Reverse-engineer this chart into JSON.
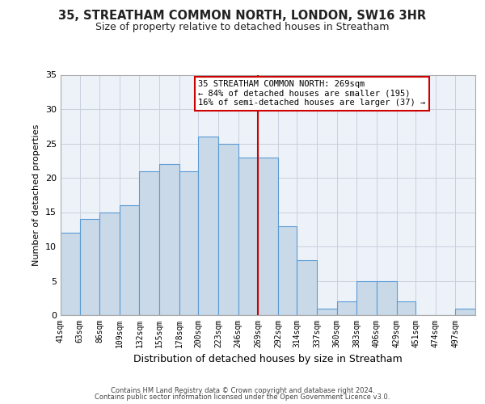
{
  "title": "35, STREATHAM COMMON NORTH, LONDON, SW16 3HR",
  "subtitle": "Size of property relative to detached houses in Streatham",
  "xlabel": "Distribution of detached houses by size in Streatham",
  "ylabel": "Number of detached properties",
  "bin_labels": [
    "41sqm",
    "63sqm",
    "86sqm",
    "109sqm",
    "132sqm",
    "155sqm",
    "178sqm",
    "200sqm",
    "223sqm",
    "246sqm",
    "269sqm",
    "292sqm",
    "314sqm",
    "337sqm",
    "360sqm",
    "383sqm",
    "406sqm",
    "429sqm",
    "451sqm",
    "474sqm",
    "497sqm"
  ],
  "bar_values": [
    12,
    14,
    15,
    16,
    21,
    22,
    21,
    26,
    25,
    23,
    23,
    13,
    8,
    1,
    2,
    5,
    5,
    2,
    0,
    0,
    1
  ],
  "bar_color": "#c9d9e8",
  "bar_edgecolor": "#5b9bd5",
  "grid_color": "#c8d0dc",
  "background_color": "#edf2f9",
  "vline_x": 269,
  "vline_color": "#cc0000",
  "annotation_text": "35 STREATHAM COMMON NORTH: 269sqm\n← 84% of detached houses are smaller (195)\n16% of semi-detached houses are larger (37) →",
  "annotation_box_edgecolor": "#cc0000",
  "ylim": [
    0,
    35
  ],
  "yticks": [
    0,
    5,
    10,
    15,
    20,
    25,
    30,
    35
  ],
  "footer1": "Contains HM Land Registry data © Crown copyright and database right 2024.",
  "footer2": "Contains public sector information licensed under the Open Government Licence v3.0.",
  "bin_edges": [
    41,
    63,
    86,
    109,
    132,
    155,
    178,
    200,
    223,
    246,
    269,
    292,
    314,
    337,
    360,
    383,
    406,
    429,
    451,
    474,
    497,
    520
  ]
}
